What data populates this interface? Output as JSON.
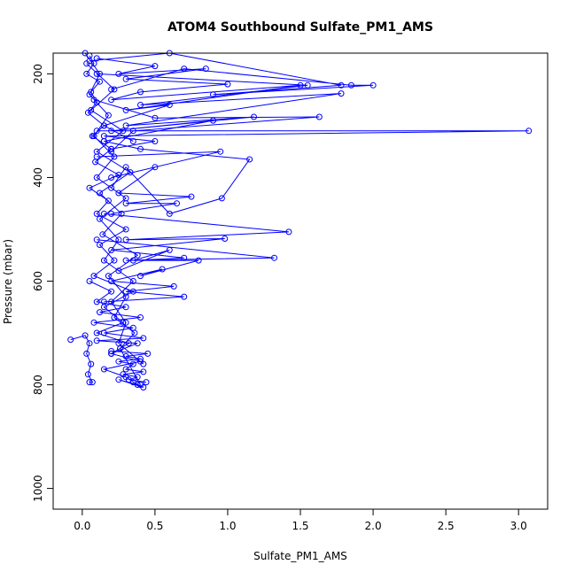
{
  "chart_data": {
    "type": "line",
    "title": "ATOM4 Southbound Sulfate_PM1_AMS",
    "xlabel": "Sulfate_PM1_AMS",
    "ylabel": "Pressure (mbar)",
    "xlim": [
      -0.2,
      3.2
    ],
    "ylim": [
      1040,
      160
    ],
    "y_inverted": true,
    "x_ticks": [
      0.0,
      0.5,
      1.0,
      1.5,
      2.0,
      2.5,
      3.0
    ],
    "x_tick_labels": [
      "0.0",
      "0.5",
      "1.0",
      "1.5",
      "2.0",
      "2.5",
      "3.0"
    ],
    "y_ticks": [
      200,
      400,
      600,
      800,
      1000
    ],
    "y_tick_labels": [
      "200",
      "400",
      "600",
      "800",
      "1000"
    ],
    "grid": false,
    "marker": "open-circle",
    "series_color": "#0000ff",
    "series": [
      {
        "x": [
          0.05,
          0.08,
          0.03,
          0.12,
          0.06,
          0.1,
          0.04,
          0.15,
          0.07,
          0.2,
          0.09,
          0.25,
          0.05,
          0.18,
          0.1,
          0.3,
          0.12,
          0.22,
          0.08,
          0.35,
          0.15,
          0.28,
          0.1,
          0.32,
          0.2,
          0.4,
          0.15,
          0.3,
          0.38,
          0.25,
          0.42,
          0.35
        ],
        "y": [
          165,
          180,
          200,
          215,
          235,
          255,
          275,
          300,
          320,
          345,
          370,
          395,
          420,
          445,
          470,
          500,
          530,
          560,
          590,
          620,
          650,
          680,
          700,
          720,
          740,
          755,
          770,
          785,
          800,
          790,
          805,
          795
        ]
      },
      {
        "x": [
          0.1,
          0.5,
          0.25,
          0.85,
          0.3,
          1.0,
          0.4,
          0.2,
          1.5,
          0.3,
          0.6,
          0.15,
          0.35
        ],
        "y": [
          170,
          185,
          200,
          190,
          210,
          220,
          235,
          250,
          222,
          270,
          260,
          300,
          330
        ]
      },
      {
        "x": [
          0.05,
          0.6,
          1.78,
          0.9,
          2.0,
          1.85,
          0.7,
          0.2
        ],
        "y": [
          175,
          160,
          222,
          240,
          222,
          222,
          190,
          230
        ]
      },
      {
        "x": [
          0.1,
          1.55,
          0.4,
          1.78,
          0.3,
          1.18,
          0.2,
          0.9,
          0.15
        ],
        "y": [
          200,
          222,
          260,
          238,
          300,
          283,
          310,
          290,
          330
        ]
      },
      {
        "x": [
          0.08,
          0.5,
          1.63,
          0.35,
          0.2
        ],
        "y": [
          250,
          285,
          283,
          310,
          350
        ]
      },
      {
        "x": [
          0.1,
          3.07,
          0.15,
          0.5,
          0.2
        ],
        "y": [
          310,
          310,
          320,
          330,
          345
        ]
      },
      {
        "x": [
          0.15,
          0.4,
          1.15,
          0.96,
          0.6,
          0.3,
          0.2
        ],
        "y": [
          330,
          345,
          365,
          440,
          470,
          380,
          420
        ]
      },
      {
        "x": [
          0.1,
          0.95,
          0.2,
          0.5,
          0.25,
          0.75,
          0.3,
          0.65,
          0.2
        ],
        "y": [
          360,
          350,
          400,
          380,
          430,
          437,
          450,
          450,
          470
        ]
      },
      {
        "x": [
          0.15,
          1.42,
          0.3,
          0.98,
          0.2,
          0.7,
          0.35,
          0.6,
          0.25
        ],
        "y": [
          470,
          505,
          520,
          518,
          540,
          555,
          560,
          540,
          580
        ]
      },
      {
        "x": [
          0.1,
          1.32,
          0.3,
          0.8,
          0.4,
          0.55,
          0.2,
          0.63,
          0.3,
          0.7,
          0.15
        ],
        "y": [
          520,
          555,
          560,
          560,
          590,
          577,
          600,
          610,
          620,
          630,
          640
        ]
      },
      {
        "x": [
          0.05,
          0.2,
          0.1,
          0.3,
          0.12,
          0.4,
          0.08,
          0.35,
          0.15,
          0.42,
          0.1,
          0.38,
          0.2
        ],
        "y": [
          600,
          620,
          640,
          650,
          660,
          670,
          680,
          690,
          700,
          710,
          715,
          720,
          740
        ]
      },
      {
        "x": [
          0.2,
          0.45,
          0.3,
          0.4,
          0.25,
          0.35,
          0.3,
          0.42,
          0.28,
          0.38,
          0.32,
          0.44
        ],
        "y": [
          735,
          740,
          745,
          750,
          755,
          760,
          770,
          775,
          780,
          785,
          790,
          795
        ]
      },
      {
        "x": [
          -0.08,
          0.02,
          0.05,
          0.03,
          0.06,
          0.04,
          0.07,
          0.05
        ],
        "y": [
          713,
          705,
          720,
          740,
          760,
          780,
          795,
          795
        ]
      },
      {
        "x": [
          0.02,
          0.12,
          0.05,
          0.18,
          0.08,
          0.22,
          0.1,
          0.3,
          0.12,
          0.25,
          0.15,
          0.35,
          0.2,
          0.3,
          0.25,
          0.42
        ],
        "y": [
          160,
          200,
          240,
          280,
          320,
          360,
          400,
          440,
          480,
          520,
          560,
          600,
          640,
          680,
          720,
          760
        ]
      },
      {
        "x": [
          0.03,
          0.22,
          0.06,
          0.28,
          0.1,
          0.33,
          0.12,
          0.27,
          0.14,
          0.38,
          0.18,
          0.3,
          0.22,
          0.36,
          0.26,
          0.4
        ],
        "y": [
          180,
          230,
          270,
          310,
          350,
          390,
          430,
          470,
          510,
          550,
          590,
          630,
          670,
          700,
          730,
          800
        ]
      }
    ]
  }
}
